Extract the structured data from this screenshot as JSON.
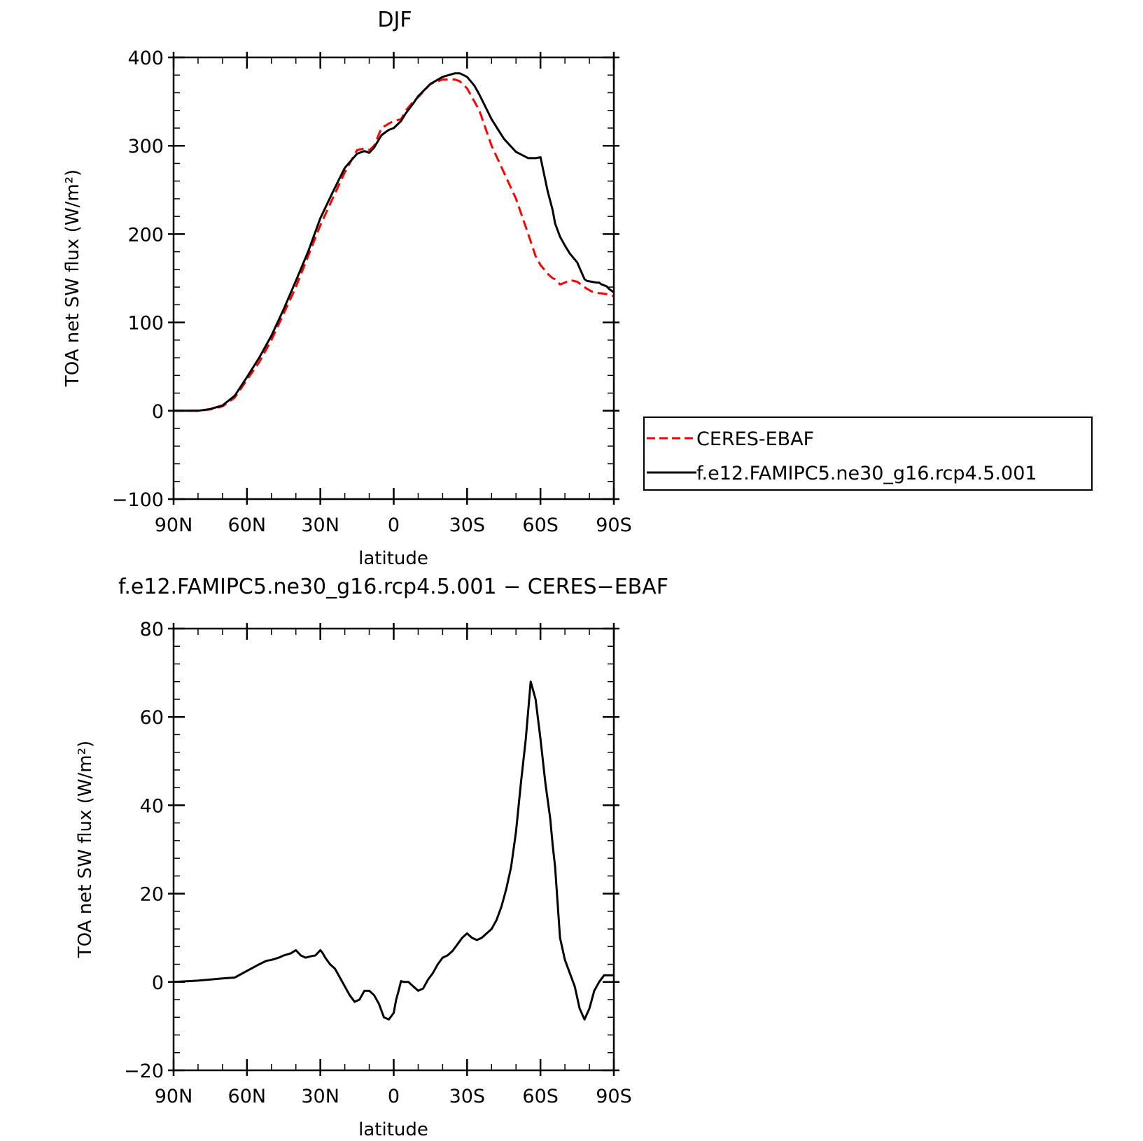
{
  "chart_data": [
    {
      "type": "line",
      "title": "DJF",
      "xlabel": "latitude",
      "ylabel": "TOA net SW flux (W/m²)",
      "xlim": [
        90,
        -90
      ],
      "ylim": [
        -100,
        400
      ],
      "xticks": [
        90,
        60,
        30,
        0,
        -30,
        -60,
        -90
      ],
      "xtick_labels": [
        "90N",
        "60N",
        "30N",
        "0",
        "30S",
        "60S",
        "90S"
      ],
      "yticks": [
        -100,
        0,
        100,
        200,
        300,
        400
      ],
      "ytick_labels": [
        "−100",
        "0",
        "100",
        "200",
        "300",
        "400"
      ],
      "grid": false,
      "legend_position": "right",
      "x": [
        90,
        85,
        80,
        75,
        70,
        65,
        60,
        55,
        50,
        45,
        40,
        35,
        30,
        25,
        20,
        15,
        12,
        10,
        8,
        5,
        2,
        0,
        -3,
        -5,
        -8,
        -10,
        -15,
        -20,
        -25,
        -27,
        -30,
        -33,
        -35,
        -40,
        -45,
        -50,
        -55,
        -58,
        -60,
        -63,
        -65,
        -66,
        -68,
        -70,
        -72,
        -75,
        -78,
        -79,
        -81,
        -83,
        -84,
        -85,
        -87,
        -88,
        -89,
        -90
      ],
      "series": [
        {
          "name": "CERES-EBAF",
          "color": "#ff0000",
          "dash": "dashed",
          "values": [
            0,
            0,
            0,
            1.5,
            5,
            15,
            35,
            55,
            80,
            110,
            140,
            175,
            210,
            240,
            270,
            295,
            297,
            295,
            300,
            320,
            325,
            328,
            330,
            340,
            350,
            355,
            370,
            375,
            375,
            373,
            365,
            350,
            340,
            300,
            270,
            240,
            200,
            175,
            165,
            155,
            150,
            149,
            143,
            145,
            148,
            146,
            140,
            138,
            135,
            134,
            133,
            133,
            132,
            131,
            130,
            130
          ]
        },
        {
          "name": "f.e12.FAMIPC5.ne30_g16.rcp4.5.001",
          "color": "#000000",
          "dash": "solid",
          "values": [
            0,
            0,
            0,
            2,
            6,
            17,
            38,
            60,
            85,
            115,
            147,
            180,
            218,
            247,
            275,
            291,
            294,
            292,
            298,
            312,
            318,
            320,
            328,
            337,
            348,
            356,
            370,
            378,
            382,
            382,
            378,
            368,
            358,
            330,
            308,
            293,
            286,
            286,
            287,
            248,
            227,
            212,
            197,
            187,
            178,
            168,
            149,
            147,
            146,
            145,
            145,
            143,
            141,
            138,
            136,
            134
          ]
        }
      ]
    },
    {
      "type": "line",
      "title": "f.e12.FAMIPC5.ne30_g16.rcp4.5.001 − CERES−EBAF",
      "xlabel": "latitude",
      "ylabel": "TOA net SW flux (W/m²)",
      "xlim": [
        90,
        -90
      ],
      "ylim": [
        -20,
        80
      ],
      "xticks": [
        90,
        60,
        30,
        0,
        -30,
        -60,
        -90
      ],
      "xtick_labels": [
        "90N",
        "60N",
        "30N",
        "0",
        "30S",
        "60S",
        "90S"
      ],
      "yticks": [
        -20,
        0,
        20,
        40,
        60,
        80
      ],
      "ytick_labels": [
        "−20",
        "0",
        "20",
        "40",
        "60",
        "80"
      ],
      "grid": false,
      "x": [
        90,
        80,
        70,
        65,
        60,
        55,
        52,
        50,
        47,
        45,
        42,
        40,
        38,
        36,
        34,
        32,
        30,
        29,
        28,
        26,
        24,
        22,
        20,
        18,
        16,
        14,
        12,
        10,
        8,
        6,
        4,
        2,
        0,
        -1,
        -2,
        -3,
        -4,
        -6,
        -8,
        -10,
        -12,
        -14,
        -16,
        -18,
        -20,
        -22,
        -24,
        -26,
        -28,
        -30,
        -32,
        -34,
        -36,
        -38,
        -40,
        -42,
        -44,
        -46,
        -48,
        -50,
        -52,
        -54,
        -56,
        -58,
        -60,
        -62,
        -64,
        -65,
        -66,
        -67,
        -68,
        -70,
        -72,
        -74,
        -76,
        -78,
        -80,
        -82,
        -84,
        -86,
        -87,
        -88,
        -89,
        -90
      ],
      "series": [
        {
          "name": "",
          "color": "#000000",
          "dash": "solid",
          "values": [
            0,
            0.3,
            0.8,
            1,
            2.5,
            4,
            4.8,
            5,
            5.5,
            6,
            6.5,
            7.2,
            6,
            5.5,
            5.8,
            6,
            7.2,
            6.5,
            5.5,
            4,
            3,
            1,
            -1,
            -3,
            -4.5,
            -4,
            -2,
            -2,
            -3,
            -5,
            -8,
            -8.5,
            -7,
            -4,
            -2,
            0.2,
            0,
            0,
            -1,
            -2,
            -1.5,
            0.5,
            2,
            4,
            5.5,
            6,
            7,
            8.5,
            10,
            11,
            10,
            9.5,
            10,
            11,
            12,
            14,
            17,
            21,
            26,
            34,
            45,
            55,
            68,
            64,
            55,
            45,
            37,
            31,
            26,
            18,
            10,
            5,
            2,
            -1,
            -6,
            -8.5,
            -6,
            -2,
            0,
            1.5,
            1.5,
            1.5,
            1.5,
            1.5
          ]
        }
      ]
    }
  ]
}
